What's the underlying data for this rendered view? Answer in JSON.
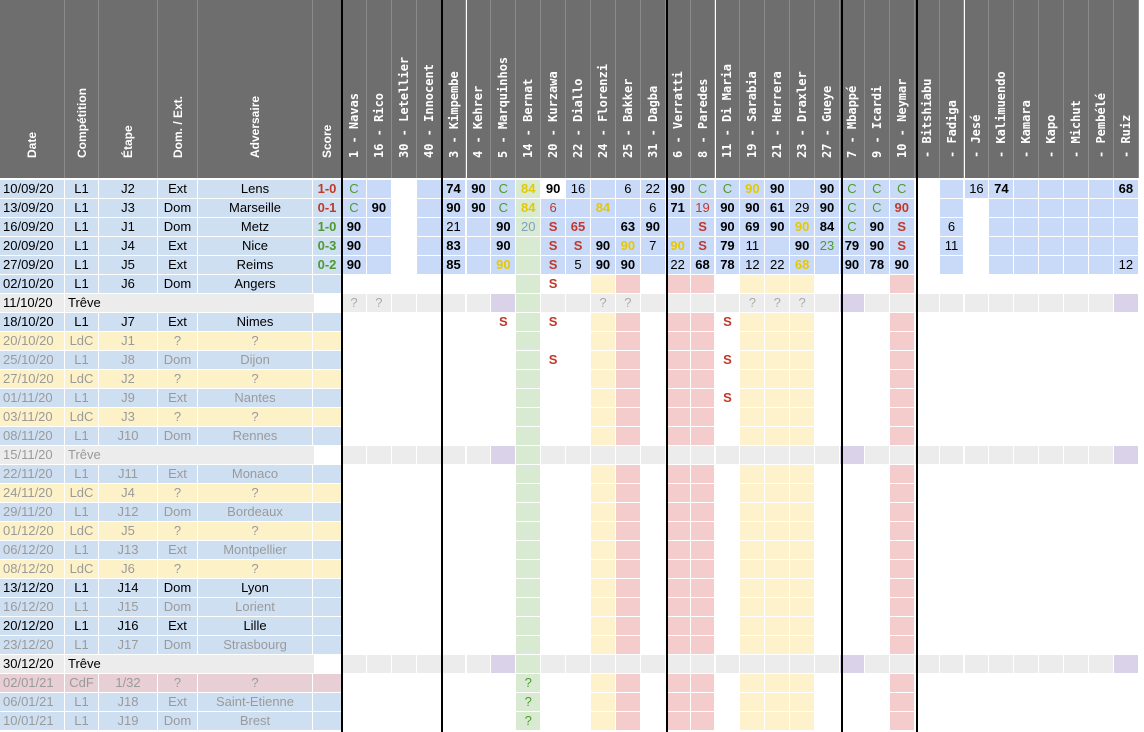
{
  "headers": [
    "Date",
    "Compétition",
    "Étape",
    "Dom. / Ext.",
    "Adversaire",
    "Score"
  ],
  "players": [
    "1 - Navas",
    "16 - Rico",
    "30 - Letellier",
    "40 - Innocent",
    "3 - Kimpembe",
    "4 - Kehrer",
    "5 - Marquinhos",
    "14 - Bernat",
    "20 - Kurzawa",
    "22 - Diallo",
    "24 - Florenzi",
    "25 - Bakker",
    "31 - Dagba",
    "6 - Verratti",
    "8 - Paredes",
    "11 - Di Maria",
    "19 - Sarabia",
    "21 - Herrera",
    "23 - Draxler",
    "27 - Gueye",
    "7 - Mbappé",
    "9 - Icardi",
    "10 - Neymar",
    "- Bitshiabu",
    "- Fadiga",
    "- Jesé",
    "- Kalimuendo",
    "- Kamara",
    "- Kapo",
    "- Michut",
    "- Pembélé",
    "- Ruiz"
  ],
  "colors": {
    "header": "#6e6e6e",
    "L1": "#cfdff2",
    "LdC": "#fdf1c8",
    "CdF": "#e8cfd6",
    "Treve": "#ececec",
    "win": "#4e9a2e",
    "loss": "#c0392b",
    "draw": "#c9a800",
    "cell_blue": "#c9daf8",
    "cell_green": "#d9ead3",
    "cell_yellow": "#fdf2cc",
    "cell_red": "#f4cccc",
    "cell_gray": "#ececec",
    "cell_purple": "#d9d2e9"
  },
  "rows": [
    {
      "date": "10/09/20",
      "comp": "L1",
      "stage": "J2",
      "venue": "Ext",
      "opp": "Lens",
      "score": "1-0",
      "result": "loss",
      "type": "L1"
    },
    {
      "date": "13/09/20",
      "comp": "L1",
      "stage": "J3",
      "venue": "Dom",
      "opp": "Marseille",
      "score": "0-1",
      "result": "loss",
      "type": "L1"
    },
    {
      "date": "16/09/20",
      "comp": "L1",
      "stage": "J1",
      "venue": "Dom",
      "opp": "Metz",
      "score": "1-0",
      "result": "win",
      "type": "L1"
    },
    {
      "date": "20/09/20",
      "comp": "L1",
      "stage": "J4",
      "venue": "Ext",
      "opp": "Nice",
      "score": "0-3",
      "result": "win",
      "type": "L1"
    },
    {
      "date": "27/09/20",
      "comp": "L1",
      "stage": "J5",
      "venue": "Ext",
      "opp": "Reims",
      "score": "0-2",
      "result": "win",
      "type": "L1"
    },
    {
      "date": "02/10/20",
      "comp": "L1",
      "stage": "J6",
      "venue": "Dom",
      "opp": "Angers",
      "score": "",
      "result": "",
      "type": "L1"
    },
    {
      "date": "11/10/20",
      "comp": "Trêve",
      "stage": "",
      "venue": "",
      "opp": "",
      "score": "",
      "result": "",
      "type": "Treve"
    },
    {
      "date": "18/10/20",
      "comp": "L1",
      "stage": "J7",
      "venue": "Ext",
      "opp": "Nimes",
      "score": "",
      "result": "",
      "type": "L1"
    },
    {
      "date": "20/10/20",
      "comp": "LdC",
      "stage": "J1",
      "venue": "?",
      "opp": "?",
      "score": "",
      "result": "",
      "type": "LdC",
      "faded": true
    },
    {
      "date": "25/10/20",
      "comp": "L1",
      "stage": "J8",
      "venue": "Dom",
      "opp": "Dijon",
      "score": "",
      "result": "",
      "type": "L1",
      "faded": true
    },
    {
      "date": "27/10/20",
      "comp": "LdC",
      "stage": "J2",
      "venue": "?",
      "opp": "?",
      "score": "",
      "result": "",
      "type": "LdC",
      "faded": true
    },
    {
      "date": "01/11/20",
      "comp": "L1",
      "stage": "J9",
      "venue": "Ext",
      "opp": "Nantes",
      "score": "",
      "result": "",
      "type": "L1",
      "faded": true
    },
    {
      "date": "03/11/20",
      "comp": "LdC",
      "stage": "J3",
      "venue": "?",
      "opp": "?",
      "score": "",
      "result": "",
      "type": "LdC",
      "faded": true
    },
    {
      "date": "08/11/20",
      "comp": "L1",
      "stage": "J10",
      "venue": "Dom",
      "opp": "Rennes",
      "score": "",
      "result": "",
      "type": "L1",
      "faded": true
    },
    {
      "date": "15/11/20",
      "comp": "Trêve",
      "stage": "",
      "venue": "",
      "opp": "",
      "score": "",
      "result": "",
      "type": "Treve",
      "faded": true
    },
    {
      "date": "22/11/20",
      "comp": "L1",
      "stage": "J11",
      "venue": "Ext",
      "opp": "Monaco",
      "score": "",
      "result": "",
      "type": "L1",
      "faded": true
    },
    {
      "date": "24/11/20",
      "comp": "LdC",
      "stage": "J4",
      "venue": "?",
      "opp": "?",
      "score": "",
      "result": "",
      "type": "LdC",
      "faded": true
    },
    {
      "date": "29/11/20",
      "comp": "L1",
      "stage": "J12",
      "venue": "Dom",
      "opp": "Bordeaux",
      "score": "",
      "result": "",
      "type": "L1",
      "faded": true
    },
    {
      "date": "01/12/20",
      "comp": "LdC",
      "stage": "J5",
      "venue": "?",
      "opp": "?",
      "score": "",
      "result": "",
      "type": "LdC",
      "faded": true
    },
    {
      "date": "06/12/20",
      "comp": "L1",
      "stage": "J13",
      "venue": "Ext",
      "opp": "Montpellier",
      "score": "",
      "result": "",
      "type": "L1",
      "faded": true
    },
    {
      "date": "08/12/20",
      "comp": "LdC",
      "stage": "J6",
      "venue": "?",
      "opp": "?",
      "score": "",
      "result": "",
      "type": "LdC",
      "faded": true
    },
    {
      "date": "13/12/20",
      "comp": "L1",
      "stage": "J14",
      "venue": "Dom",
      "opp": "Lyon",
      "score": "",
      "result": "",
      "type": "L1"
    },
    {
      "date": "16/12/20",
      "comp": "L1",
      "stage": "J15",
      "venue": "Dom",
      "opp": "Lorient",
      "score": "",
      "result": "",
      "type": "L1",
      "faded": true
    },
    {
      "date": "20/12/20",
      "comp": "L1",
      "stage": "J16",
      "venue": "Ext",
      "opp": "Lille",
      "score": "",
      "result": "",
      "type": "L1"
    },
    {
      "date": "23/12/20",
      "comp": "L1",
      "stage": "J17",
      "venue": "Dom",
      "opp": "Strasbourg",
      "score": "",
      "result": "",
      "type": "L1",
      "faded": true
    },
    {
      "date": "30/12/20",
      "comp": "Trêve",
      "stage": "",
      "venue": "",
      "opp": "",
      "score": "",
      "result": "",
      "type": "Treve"
    },
    {
      "date": "02/01/21",
      "comp": "CdF",
      "stage": "1/32",
      "venue": "?",
      "opp": "?",
      "score": "",
      "result": "",
      "type": "CdF",
      "faded": true
    },
    {
      "date": "06/01/21",
      "comp": "L1",
      "stage": "J18",
      "venue": "Ext",
      "opp": "Saint-Etienne",
      "score": "",
      "result": "",
      "type": "L1",
      "faded": true
    },
    {
      "date": "10/01/21",
      "comp": "L1",
      "stage": "J19",
      "venue": "Dom",
      "opp": "Brest",
      "score": "",
      "result": "",
      "type": "L1",
      "faded": true
    }
  ],
  "player_cells": [
    [
      "C",
      "",
      "",
      "",
      "74",
      "90",
      "C",
      "84",
      "90",
      "16",
      "",
      "6",
      "22",
      "90",
      "C",
      "C",
      "90",
      "90",
      "",
      "90",
      "C",
      "C",
      "C",
      "",
      "",
      "16",
      "74",
      "",
      "",
      "",
      "",
      "68"
    ],
    [
      "C",
      "90",
      "",
      "",
      "90",
      "90",
      "C",
      "84",
      "6",
      "",
      "84",
      "",
      "6",
      "71",
      "19",
      "90",
      "90",
      "61",
      "29",
      "90",
      "C",
      "C",
      "90",
      "",
      "",
      "",
      "",
      "",
      "",
      "",
      "",
      ""
    ],
    [
      "90",
      "",
      "",
      "",
      "21",
      "",
      "90",
      "20",
      "S",
      "65",
      "",
      "63",
      "90",
      "",
      "S",
      "90",
      "69",
      "90",
      "90",
      "84",
      "C",
      "90",
      "S",
      "",
      "6",
      "",
      "",
      "",
      "",
      "",
      "",
      ""
    ],
    [
      "90",
      "",
      "",
      "",
      "83",
      "",
      "90",
      "",
      "S",
      "S",
      "90",
      "90",
      "7",
      "90",
      "S",
      "79",
      "11",
      "",
      "90",
      "23",
      "79",
      "90",
      "S",
      "",
      "11",
      "",
      "",
      "",
      "",
      "",
      "",
      ""
    ],
    [
      "90",
      "",
      "",
      "",
      "85",
      "",
      "90",
      "",
      "S",
      "5",
      "90",
      "90",
      "",
      "22",
      "68",
      "78",
      "12",
      "22",
      "68",
      "",
      "90",
      "78",
      "90",
      "",
      "",
      "",
      "",
      "",
      "",
      "",
      "",
      "12"
    ],
    [
      "",
      "",
      "",
      "",
      "",
      "",
      "",
      "",
      "S",
      "",
      "",
      "",
      "",
      "",
      "",
      "",
      "",
      "",
      "",
      "",
      "",
      "",
      "",
      "",
      "",
      "",
      "",
      "",
      "",
      "",
      "",
      ""
    ],
    [
      "?",
      "?",
      "",
      "",
      "",
      "",
      "",
      "",
      "",
      "",
      "?",
      "?",
      "",
      "",
      "",
      "",
      "?",
      "?",
      "?",
      "",
      "",
      "",
      "",
      "",
      "",
      "",
      "",
      "",
      "",
      "",
      "",
      ""
    ],
    [
      "",
      "",
      "",
      "",
      "",
      "",
      "S",
      "",
      "S",
      "",
      "",
      "",
      "",
      "",
      "",
      "S",
      "",
      "",
      "",
      "",
      "",
      "",
      "",
      "",
      "",
      "",
      "",
      "",
      "",
      "",
      "",
      ""
    ],
    [
      "",
      "",
      "",
      "",
      "",
      "",
      "",
      "",
      "",
      "",
      "",
      "",
      "",
      "",
      "",
      "",
      "",
      "",
      "",
      "",
      "",
      "",
      "",
      "",
      "",
      "",
      "",
      "",
      "",
      "",
      "",
      ""
    ],
    [
      "",
      "",
      "",
      "",
      "",
      "",
      "",
      "",
      "S",
      "",
      "",
      "",
      "",
      "",
      "",
      "S",
      "",
      "",
      "",
      "",
      "",
      "",
      "",
      "",
      "",
      "",
      "",
      "",
      "",
      "",
      "",
      ""
    ],
    [
      "",
      "",
      "",
      "",
      "",
      "",
      "",
      "",
      "",
      "",
      "",
      "",
      "",
      "",
      "",
      "",
      "",
      "",
      "",
      "",
      "",
      "",
      "",
      "",
      "",
      "",
      "",
      "",
      "",
      "",
      "",
      ""
    ],
    [
      "",
      "",
      "",
      "",
      "",
      "",
      "",
      "",
      "",
      "",
      "",
      "",
      "",
      "",
      "",
      "S",
      "",
      "",
      "",
      "",
      "",
      "",
      "",
      "",
      "",
      "",
      "",
      "",
      "",
      "",
      "",
      ""
    ],
    [
      "",
      "",
      "",
      "",
      "",
      "",
      "",
      "",
      "",
      "",
      "",
      "",
      "",
      "",
      "",
      "",
      "",
      "",
      "",
      "",
      "",
      "",
      "",
      "",
      "",
      "",
      "",
      "",
      "",
      "",
      "",
      ""
    ],
    [
      "",
      "",
      "",
      "",
      "",
      "",
      "",
      "",
      "",
      "",
      "",
      "",
      "",
      "",
      "",
      "",
      "",
      "",
      "",
      "",
      "",
      "",
      "",
      "",
      "",
      "",
      "",
      "",
      "",
      "",
      "",
      ""
    ],
    [
      "",
      "",
      "",
      "",
      "",
      "",
      "",
      "",
      "",
      "",
      "",
      "",
      "",
      "",
      "",
      "",
      "",
      "",
      "",
      "",
      "",
      "",
      "",
      "",
      "",
      "",
      "",
      "",
      "",
      "",
      "",
      ""
    ],
    [
      "",
      "",
      "",
      "",
      "",
      "",
      "",
      "",
      "",
      "",
      "",
      "",
      "",
      "",
      "",
      "",
      "",
      "",
      "",
      "",
      "",
      "",
      "",
      "",
      "",
      "",
      "",
      "",
      "",
      "",
      "",
      ""
    ],
    [
      "",
      "",
      "",
      "",
      "",
      "",
      "",
      "",
      "",
      "",
      "",
      "",
      "",
      "",
      "",
      "",
      "",
      "",
      "",
      "",
      "",
      "",
      "",
      "",
      "",
      "",
      "",
      "",
      "",
      "",
      "",
      ""
    ],
    [
      "",
      "",
      "",
      "",
      "",
      "",
      "",
      "",
      "",
      "",
      "",
      "",
      "",
      "",
      "",
      "",
      "",
      "",
      "",
      "",
      "",
      "",
      "",
      "",
      "",
      "",
      "",
      "",
      "",
      "",
      "",
      ""
    ],
    [
      "",
      "",
      "",
      "",
      "",
      "",
      "",
      "",
      "",
      "",
      "",
      "",
      "",
      "",
      "",
      "",
      "",
      "",
      "",
      "",
      "",
      "",
      "",
      "",
      "",
      "",
      "",
      "",
      "",
      "",
      "",
      ""
    ],
    [
      "",
      "",
      "",
      "",
      "",
      "",
      "",
      "",
      "",
      "",
      "",
      "",
      "",
      "",
      "",
      "",
      "",
      "",
      "",
      "",
      "",
      "",
      "",
      "",
      "",
      "",
      "",
      "",
      "",
      "",
      "",
      ""
    ],
    [
      "",
      "",
      "",
      "",
      "",
      "",
      "",
      "",
      "",
      "",
      "",
      "",
      "",
      "",
      "",
      "",
      "",
      "",
      "",
      "",
      "",
      "",
      "",
      "",
      "",
      "",
      "",
      "",
      "",
      "",
      "",
      ""
    ],
    [
      "",
      "",
      "",
      "",
      "",
      "",
      "",
      "",
      "",
      "",
      "",
      "",
      "",
      "",
      "",
      "",
      "",
      "",
      "",
      "",
      "",
      "",
      "",
      "",
      "",
      "",
      "",
      "",
      "",
      "",
      "",
      ""
    ],
    [
      "",
      "",
      "",
      "",
      "",
      "",
      "",
      "",
      "",
      "",
      "",
      "",
      "",
      "",
      "",
      "",
      "",
      "",
      "",
      "",
      "",
      "",
      "",
      "",
      "",
      "",
      "",
      "",
      "",
      "",
      "",
      ""
    ],
    [
      "",
      "",
      "",
      "",
      "",
      "",
      "",
      "",
      "",
      "",
      "",
      "",
      "",
      "",
      "",
      "",
      "",
      "",
      "",
      "",
      "",
      "",
      "",
      "",
      "",
      "",
      "",
      "",
      "",
      "",
      "",
      ""
    ],
    [
      "",
      "",
      "",
      "",
      "",
      "",
      "",
      "",
      "",
      "",
      "",
      "",
      "",
      "",
      "",
      "",
      "",
      "",
      "",
      "",
      "",
      "",
      "",
      "",
      "",
      "",
      "",
      "",
      "",
      "",
      "",
      ""
    ],
    [
      "",
      "",
      "",
      "",
      "",
      "",
      "",
      "",
      "",
      "",
      "",
      "",
      "",
      "",
      "",
      "",
      "",
      "",
      "",
      "",
      "",
      "",
      "",
      "",
      "",
      "",
      "",
      "",
      "",
      "",
      "",
      ""
    ],
    [
      "",
      "",
      "",
      "",
      "",
      "",
      "",
      "?",
      "",
      "",
      "",
      "",
      "",
      "",
      "",
      "",
      "",
      "",
      "",
      "",
      "",
      "",
      "",
      "",
      "",
      "",
      "",
      "",
      "",
      "",
      "",
      ""
    ],
    [
      "",
      "",
      "",
      "",
      "",
      "",
      "",
      "?",
      "",
      "",
      "",
      "",
      "",
      "",
      "",
      "",
      "",
      "",
      "",
      "",
      "",
      "",
      "",
      "",
      "",
      "",
      "",
      "",
      "",
      "",
      "",
      ""
    ],
    [
      "",
      "",
      "",
      "",
      "",
      "",
      "",
      "?",
      "",
      "",
      "",
      "",
      "",
      "",
      "",
      "",
      "",
      "",
      "",
      "",
      "",
      "",
      "",
      "",
      "",
      "",
      "",
      "",
      "",
      "",
      "",
      ""
    ]
  ]
}
